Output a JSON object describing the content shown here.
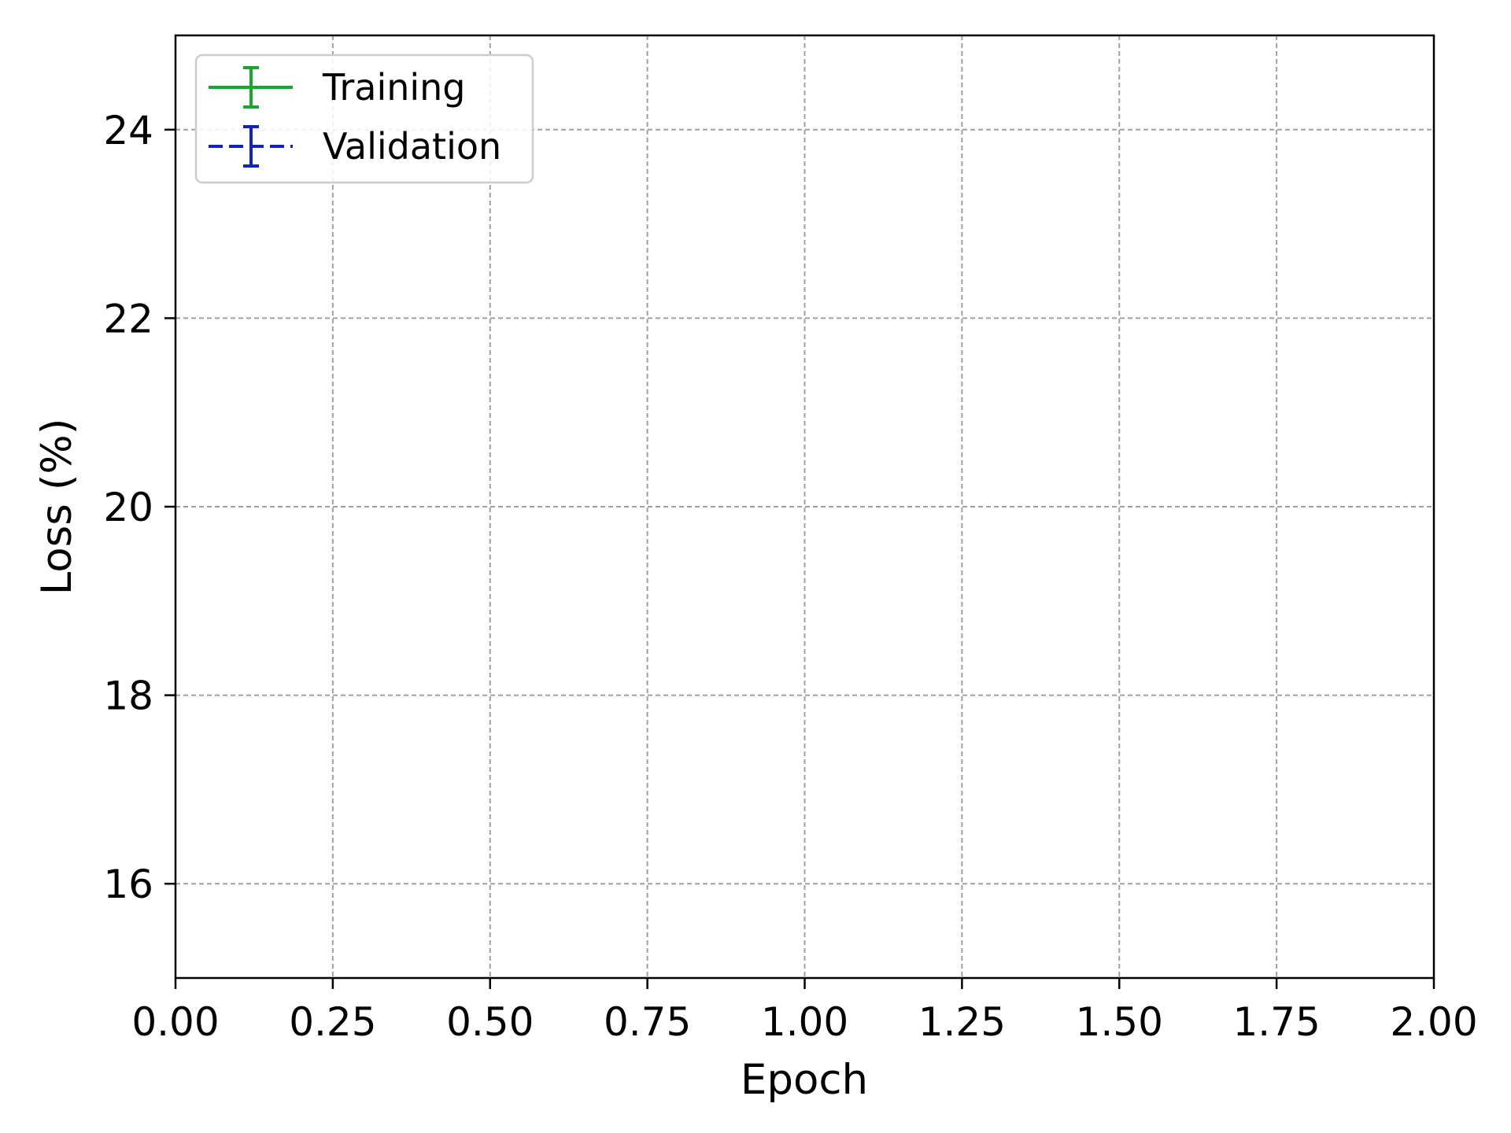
{
  "chart_data": {
    "type": "line",
    "title": "",
    "xlabel": "Epoch",
    "ylabel": "Loss (%)",
    "xlim": [
      0,
      2
    ],
    "ylim": [
      15,
      25
    ],
    "xticks": [
      0,
      0.25,
      0.5,
      0.75,
      1.0,
      1.25,
      1.5,
      1.75,
      2.0
    ],
    "xtick_labels": [
      "0.00",
      "0.25",
      "0.50",
      "0.75",
      "1.00",
      "1.25",
      "1.50",
      "1.75",
      "2.00"
    ],
    "yticks": [
      16,
      18,
      20,
      22,
      24
    ],
    "ytick_labels": [
      "16",
      "18",
      "20",
      "22",
      "24"
    ],
    "grid": true,
    "legend_position": "top-left",
    "series": [
      {
        "name": "Training",
        "color": "#1aa52c",
        "linestyle": "solid",
        "errorbars": true,
        "x": [],
        "y": [],
        "yerr": []
      },
      {
        "name": "Validation",
        "color": "#1121c4",
        "linestyle": "dashed",
        "errorbars": true,
        "x": [],
        "y": [],
        "yerr": []
      }
    ]
  }
}
